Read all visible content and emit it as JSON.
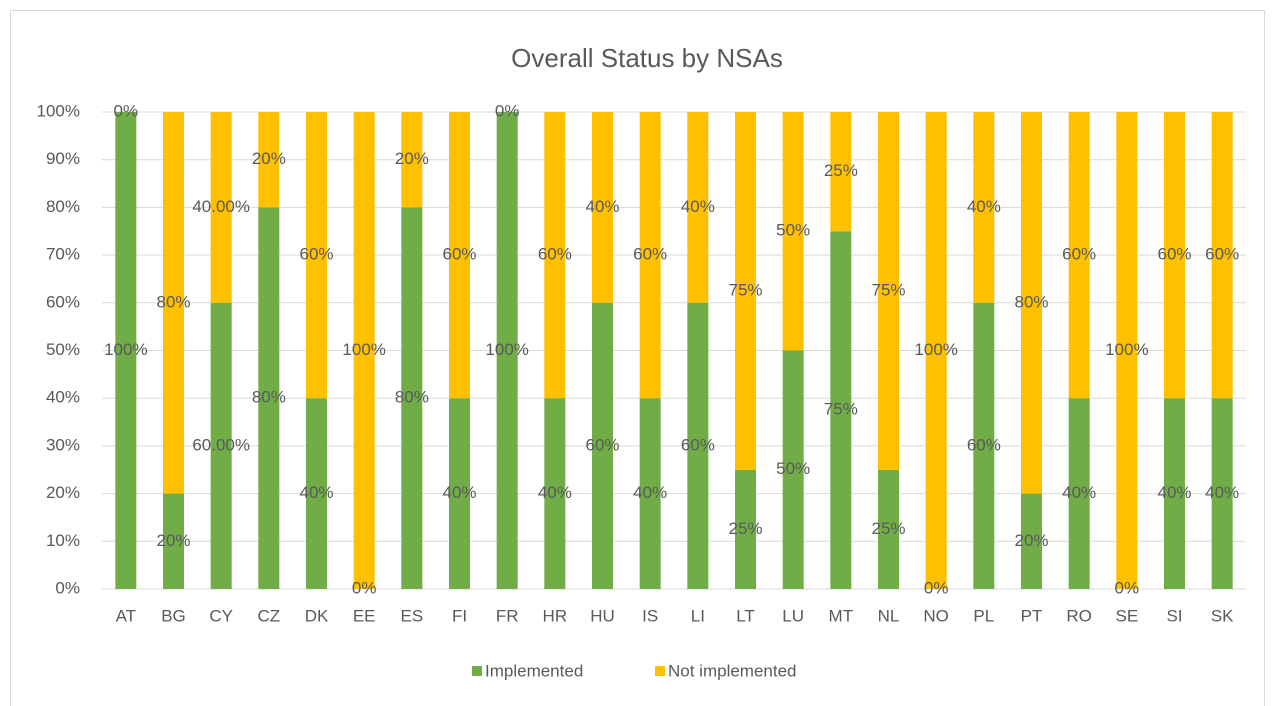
{
  "chart_data": {
    "type": "stacked_bar",
    "title": "Overall Status by NSAs",
    "categories": [
      "AT",
      "BG",
      "CY",
      "CZ",
      "DK",
      "EE",
      "ES",
      "FI",
      "FR",
      "HR",
      "HU",
      "IS",
      "LI",
      "LT",
      "LU",
      "MT",
      "NL",
      "NO",
      "PL",
      "PT",
      "RO",
      "SE",
      "SI",
      "SK"
    ],
    "series": [
      {
        "name": "Implemented",
        "color": "#70ad47",
        "values": [
          100,
          20,
          60,
          80,
          40,
          0,
          80,
          40,
          100,
          40,
          60,
          40,
          60,
          25,
          50,
          75,
          25,
          0,
          60,
          20,
          40,
          0,
          40,
          40
        ],
        "value_labels": [
          "100%",
          "20%",
          "60.00%",
          "80%",
          "40%",
          "0%",
          "80%",
          "40%",
          "100%",
          "40%",
          "60%",
          "40%",
          "60%",
          "25%",
          "50%",
          "75%",
          "25%",
          "0%",
          "60%",
          "20%",
          "40%",
          "0%",
          "40%",
          "40%"
        ]
      },
      {
        "name": "Not implemented",
        "color": "#ffc000",
        "values": [
          0,
          80,
          40,
          20,
          60,
          100,
          20,
          60,
          0,
          60,
          40,
          60,
          40,
          75,
          50,
          25,
          75,
          100,
          40,
          80,
          60,
          100,
          60,
          60
        ],
        "value_labels": [
          "0%",
          "80%",
          "40.00%",
          "20%",
          "60%",
          "100%",
          "20%",
          "60%",
          "0%",
          "60%",
          "40%",
          "60%",
          "40%",
          "75%",
          "50%",
          "25%",
          "75%",
          "100%",
          "40%",
          "80%",
          "60%",
          "100%",
          "60%",
          "60%"
        ]
      }
    ],
    "ylim": [
      0,
      100
    ],
    "yticks": [
      {
        "value": 0,
        "label": "0%"
      },
      {
        "value": 10,
        "label": "10%"
      },
      {
        "value": 20,
        "label": "20%"
      },
      {
        "value": 30,
        "label": "30%"
      },
      {
        "value": 40,
        "label": "40%"
      },
      {
        "value": 50,
        "label": "50%"
      },
      {
        "value": 60,
        "label": "60%"
      },
      {
        "value": 70,
        "label": "70%"
      },
      {
        "value": 80,
        "label": "80%"
      },
      {
        "value": 90,
        "label": "90%"
      },
      {
        "value": 100,
        "label": "100%"
      }
    ],
    "grid": true,
    "legend": "bottom"
  }
}
